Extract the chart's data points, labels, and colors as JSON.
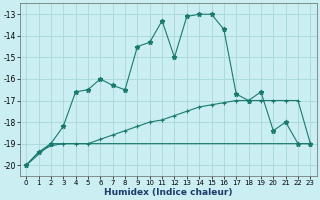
{
  "xlabel": "Humidex (Indice chaleur)",
  "bg_color": "#cbeef3",
  "grid_color": "#a8d8d8",
  "line_color": "#1a7a6e",
  "xlim": [
    -0.5,
    23.5
  ],
  "ylim": [
    -20.5,
    -12.5
  ],
  "yticks": [
    -20,
    -19,
    -18,
    -17,
    -16,
    -15,
    -14,
    -13
  ],
  "xticks": [
    0,
    1,
    2,
    3,
    4,
    5,
    6,
    7,
    8,
    9,
    10,
    11,
    12,
    13,
    14,
    15,
    16,
    17,
    18,
    19,
    20,
    21,
    22,
    23
  ],
  "series1_x": [
    0,
    1,
    2,
    3,
    4,
    5,
    6,
    7,
    8,
    9,
    10,
    11,
    12,
    13,
    14,
    15,
    16,
    17,
    18,
    19,
    20,
    21,
    22,
    23
  ],
  "series1_y": [
    -20.0,
    -19.4,
    -19.0,
    -18.2,
    -16.6,
    -16.5,
    -16.0,
    -16.3,
    -16.5,
    -14.5,
    -14.3,
    -13.3,
    -15.0,
    -13.1,
    -13.0,
    -13.0,
    -13.7,
    -16.7,
    -17.0,
    -16.6,
    -18.4,
    -18.0,
    -19.0,
    -19.0
  ],
  "series2_x": [
    0,
    2,
    3,
    4,
    5,
    6,
    7,
    8,
    9,
    10,
    11,
    12,
    13,
    14,
    15,
    16,
    17,
    18,
    19,
    20,
    21,
    22,
    23
  ],
  "series2_y": [
    -20.0,
    -19.0,
    -19.0,
    -19.0,
    -19.0,
    -18.8,
    -18.6,
    -18.4,
    -18.2,
    -18.0,
    -17.9,
    -17.7,
    -17.5,
    -17.3,
    -17.2,
    -17.1,
    -17.0,
    -17.0,
    -17.0,
    -17.0,
    -17.0,
    -17.0,
    -19.0
  ],
  "series3_x": [
    0,
    1,
    2,
    3,
    4,
    5,
    6,
    7,
    8,
    9,
    10,
    11,
    12,
    13,
    14,
    15,
    16,
    17,
    18,
    19,
    20,
    21,
    22,
    23
  ],
  "series3_y": [
    -20.0,
    -19.4,
    -19.1,
    -19.0,
    -19.0,
    -19.0,
    -19.0,
    -19.0,
    -19.0,
    -19.0,
    -19.0,
    -19.0,
    -19.0,
    -19.0,
    -19.0,
    -19.0,
    -19.0,
    -19.0,
    -19.0,
    -19.0,
    -19.0,
    -19.0,
    -19.0,
    -19.0
  ]
}
